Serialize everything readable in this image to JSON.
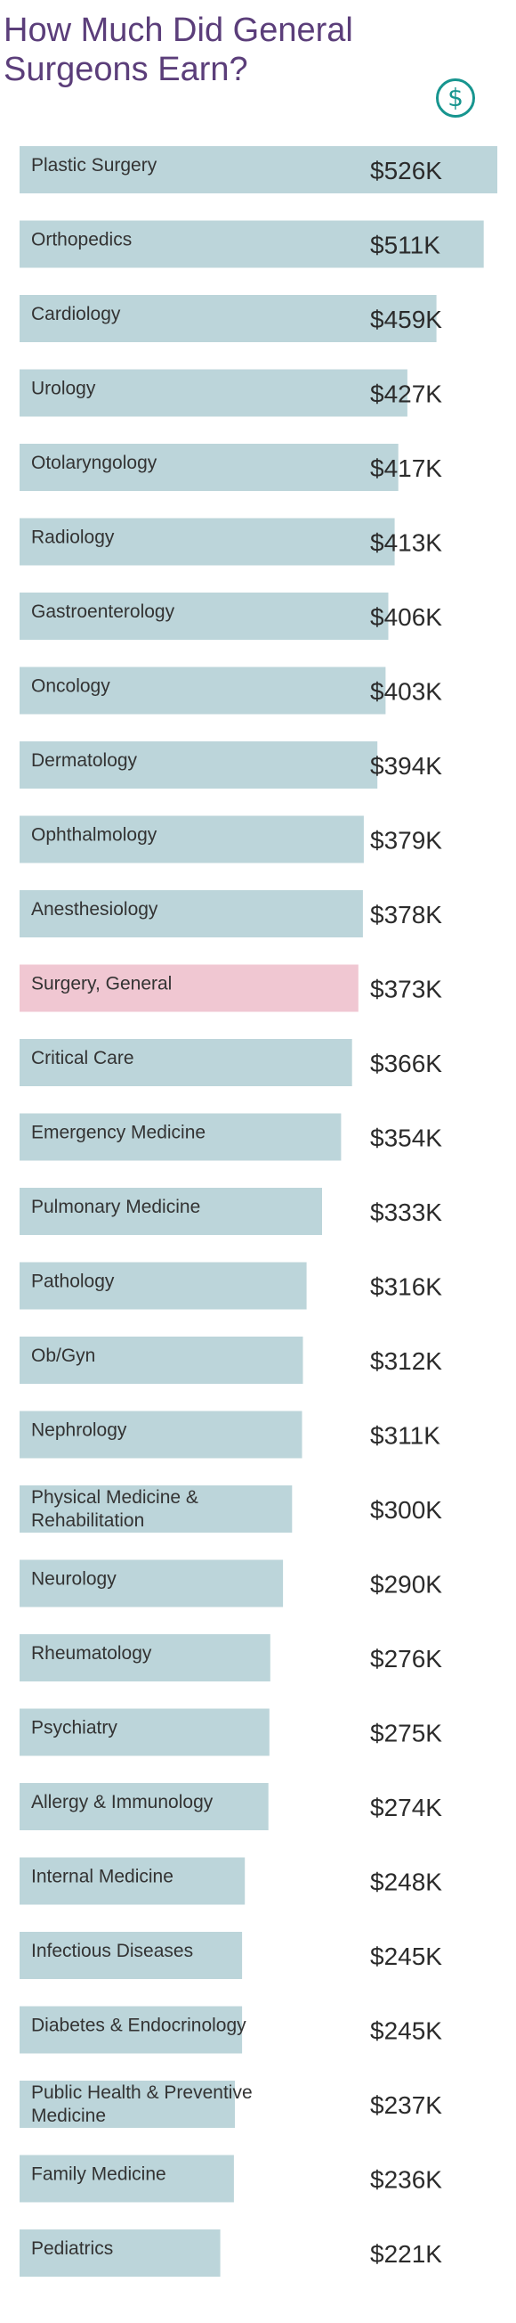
{
  "header": {
    "title": "How Much Did General Surgeons Earn?",
    "icon": "dollar-circle-icon",
    "icon_glyph": "$"
  },
  "colors": {
    "bar": "#bcd5da",
    "highlight_bar": "#f0c7d2",
    "highlight_text": "#c73a6b",
    "title": "#5b3e7a",
    "icon": "#17958f"
  },
  "chart_data": {
    "type": "bar",
    "orientation": "horizontal",
    "title": "How Much Did General Surgeons Earn?",
    "xlabel": "",
    "ylabel": "",
    "value_prefix": "$",
    "value_suffix": "K",
    "highlight": "Surgery, General",
    "grid": false,
    "legend": "none",
    "xlim": [
      0,
      526
    ],
    "categories": [
      "Plastic Surgery",
      "Orthopedics",
      "Cardiology",
      "Urology",
      "Otolaryngology",
      "Radiology",
      "Gastroenterology",
      "Oncology",
      "Dermatology",
      "Ophthalmology",
      "Anesthesiology",
      "Surgery, General",
      "Critical Care",
      "Emergency Medicine",
      "Pulmonary Medicine",
      "Pathology",
      "Ob/Gyn",
      "Nephrology",
      "Physical Medicine & Rehabilitation",
      "Neurology",
      "Rheumatology",
      "Psychiatry",
      "Allergy & Immunology",
      "Internal Medicine",
      "Infectious Diseases",
      "Diabetes & Endocrinology",
      "Public Health & Preventive Medicine",
      "Family Medicine",
      "Pediatrics"
    ],
    "values": [
      526,
      511,
      459,
      427,
      417,
      413,
      406,
      403,
      394,
      379,
      378,
      373,
      366,
      354,
      333,
      316,
      312,
      311,
      300,
      290,
      276,
      275,
      274,
      248,
      245,
      245,
      237,
      236,
      221
    ],
    "value_labels": [
      "$526K",
      "$511K",
      "$459K",
      "$427K",
      "$417K",
      "$413K",
      "$406K",
      "$403K",
      "$394K",
      "$379K",
      "$378K",
      "$373K",
      "$366K",
      "$354K",
      "$333K",
      "$316K",
      "$312K",
      "$311K",
      "$300K",
      "$290K",
      "$276K",
      "$275K",
      "$274K",
      "$248K",
      "$245K",
      "$245K",
      "$237K",
      "$236K",
      "$221K"
    ]
  }
}
